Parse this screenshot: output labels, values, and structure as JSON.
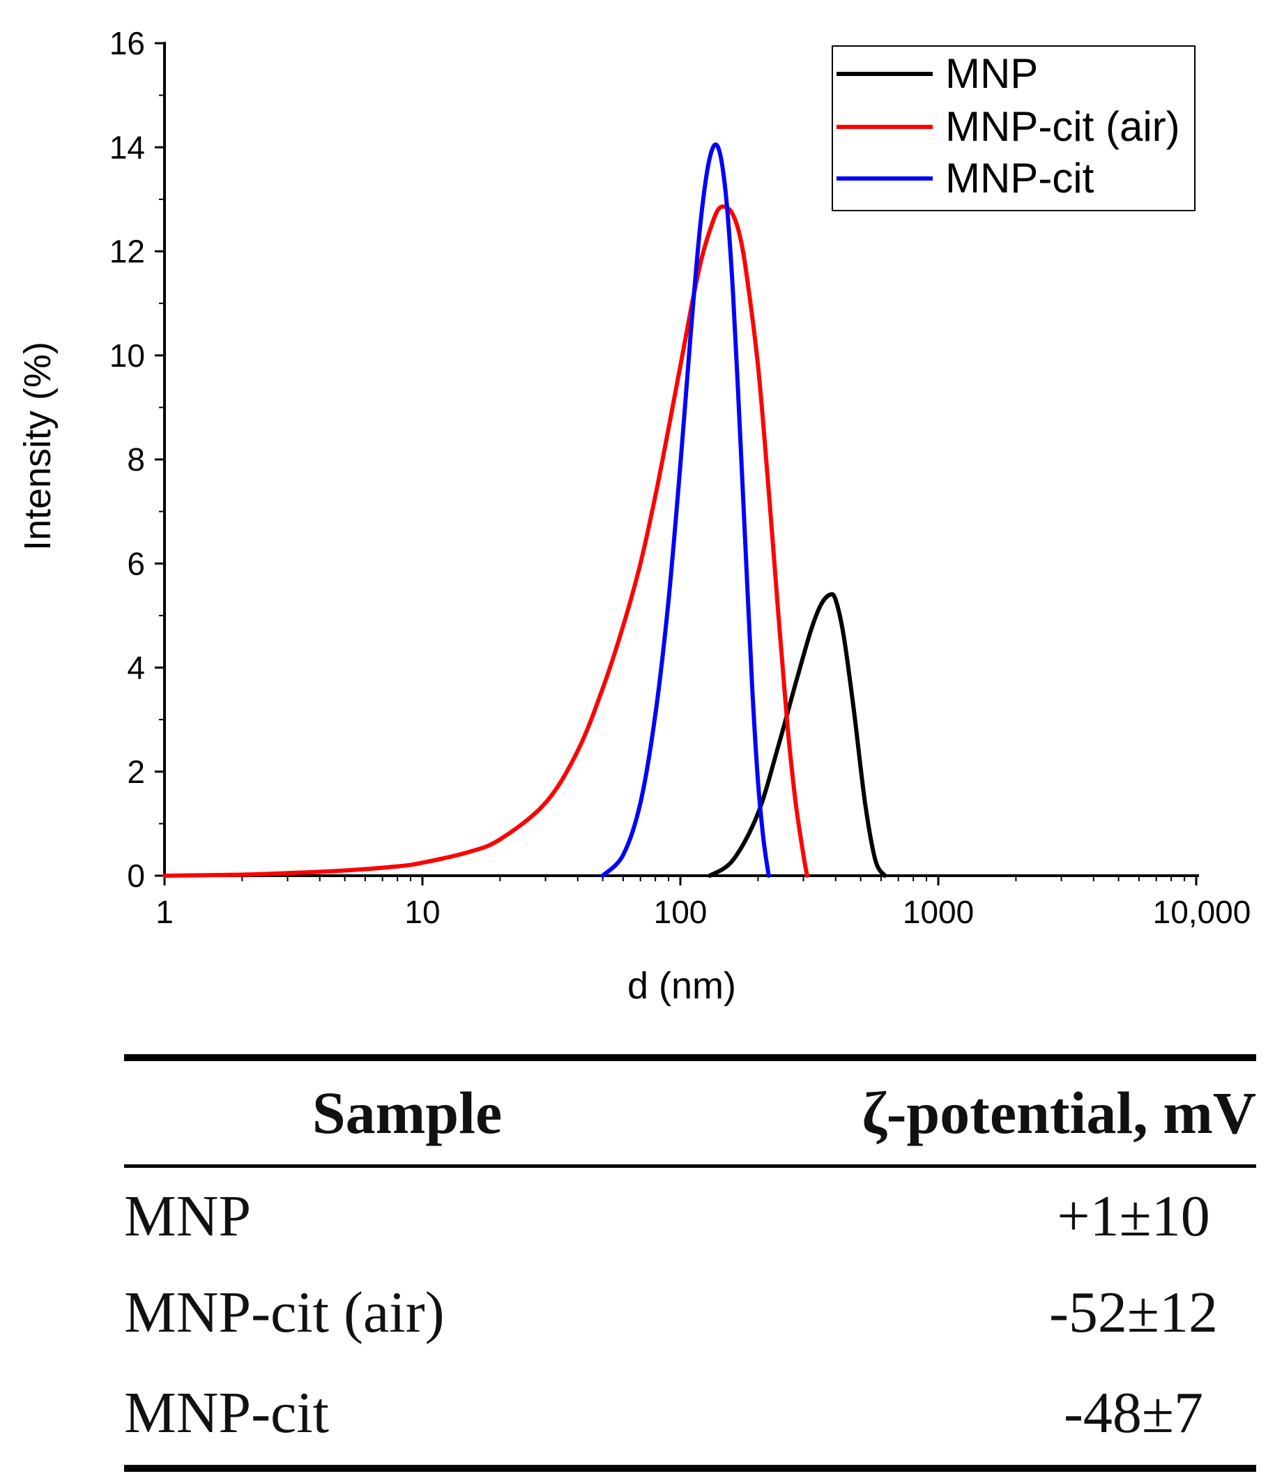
{
  "chart_data": {
    "type": "line",
    "xscale": "log",
    "xlabel": "d (nm)",
    "ylabel": "Intensity (%)",
    "xlim": [
      1,
      10000
    ],
    "ylim": [
      0,
      16
    ],
    "x_ticks": [
      {
        "value": 1,
        "label": "1"
      },
      {
        "value": 10,
        "label": "10"
      },
      {
        "value": 100,
        "label": "100"
      },
      {
        "value": 1000,
        "label": "1000"
      },
      {
        "value": 10000,
        "label": "10,000"
      }
    ],
    "y_ticks": [
      0,
      2,
      4,
      6,
      8,
      10,
      12,
      14,
      16
    ],
    "legend_position": "top-right",
    "series": [
      {
        "name": "MNP",
        "color": "#000000",
        "x": [
          130,
          160,
          200,
          240,
          280,
          320,
          350,
          380,
          400,
          430,
          470,
          520,
          570,
          620
        ],
        "y": [
          0.0,
          0.3,
          1.2,
          2.5,
          3.7,
          4.7,
          5.2,
          5.4,
          5.3,
          4.6,
          3.2,
          1.4,
          0.3,
          0.0
        ]
      },
      {
        "name": "MNP-cit (air)",
        "color": "#ff0000",
        "x": [
          1,
          2,
          3,
          5,
          8,
          10,
          15,
          20,
          30,
          40,
          50,
          60,
          70,
          80,
          90,
          100,
          110,
          120,
          130,
          140,
          150,
          160,
          170,
          180,
          200,
          220,
          240,
          260,
          280,
          300,
          310
        ],
        "y": [
          0.0,
          0.02,
          0.05,
          0.1,
          0.18,
          0.25,
          0.45,
          0.7,
          1.4,
          2.4,
          3.6,
          4.8,
          6.0,
          7.3,
          8.6,
          9.8,
          10.9,
          11.8,
          12.4,
          12.8,
          12.85,
          12.7,
          12.3,
          11.6,
          9.8,
          7.4,
          5.0,
          2.9,
          1.4,
          0.4,
          0.0
        ]
      },
      {
        "name": "MNP-cit",
        "color": "#0000ff",
        "x": [
          50,
          60,
          70,
          80,
          90,
          100,
          110,
          120,
          130,
          140,
          150,
          160,
          170,
          180,
          190,
          200,
          210,
          220
        ],
        "y": [
          0.0,
          0.4,
          1.4,
          3.1,
          5.3,
          7.9,
          10.5,
          12.6,
          13.8,
          14.0,
          13.1,
          11.2,
          8.6,
          6.0,
          3.6,
          1.8,
          0.7,
          0.0
        ]
      }
    ]
  },
  "table": {
    "headers": {
      "sample": "Sample",
      "zeta": "ζ-potential, mV"
    },
    "rows": [
      {
        "sample": "MNP",
        "zeta": "+1±10"
      },
      {
        "sample": "MNP-cit (air)",
        "zeta": "-52±12"
      },
      {
        "sample": "MNP-cit",
        "zeta": "-48±7"
      }
    ]
  }
}
